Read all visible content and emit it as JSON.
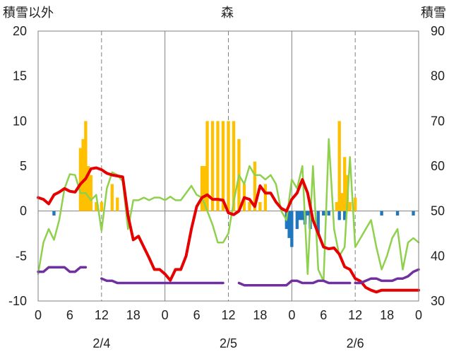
{
  "chart_data": {
    "type": "combo",
    "title": "森",
    "ylabel_left": "積雪以外",
    "ylabel_right": "積雪",
    "ylim_left": [
      -10,
      20
    ],
    "yticks_left": [
      "-10",
      "-5",
      "0",
      "5",
      "10",
      "15",
      "20"
    ],
    "ylim_right": [
      30,
      90
    ],
    "yticks_right": [
      "30",
      "40",
      "50",
      "60",
      "70",
      "80",
      "90"
    ],
    "x_range_hours": [
      0,
      72
    ],
    "x_tick_labels": [
      "0",
      "6",
      "12",
      "18",
      "0",
      "6",
      "12",
      "18",
      "0",
      "6",
      "12",
      "18",
      "0"
    ],
    "date_labels": [
      "2/4",
      "2/5",
      "2/6"
    ],
    "grid": "dashed vertical every 12h, solid at day boundaries",
    "colors": {
      "precip": "#ffc000",
      "snow_change": "#1f77c0",
      "temperature": "#e60000",
      "wind": "#8fd04d",
      "snow_depth": "#7030a0"
    },
    "precip_bars": {
      "hours": [
        8,
        8.5,
        9,
        9.5,
        10,
        11,
        12,
        14,
        15,
        31,
        31.5,
        32,
        33,
        34,
        35,
        36,
        37,
        38,
        39,
        40,
        41,
        42,
        43,
        56.5,
        57,
        57.5,
        58,
        58.5,
        59,
        60
      ],
      "values": [
        7,
        8,
        10,
        5,
        4,
        1,
        1,
        3,
        1.5,
        5,
        5,
        10,
        10,
        10,
        10,
        10,
        10,
        8,
        3,
        1,
        5.5,
        1,
        3,
        1,
        10,
        2,
        6,
        4,
        1,
        1.5
      ]
    },
    "snow_change_bars": {
      "hours": [
        3,
        47,
        47.5,
        48,
        49,
        49.5,
        50,
        50.5,
        51,
        51.5,
        53,
        54,
        55,
        57,
        58,
        65,
        68,
        71
      ],
      "values": [
        -0.5,
        -2,
        -3,
        -4,
        -2,
        -1,
        -1,
        -1.5,
        -0.5,
        -2,
        -2.5,
        -0.5,
        -0.5,
        -1,
        -1,
        -0.5,
        -0.5,
        -0.5
      ]
    },
    "temperature_line": {
      "hours": [
        0,
        1,
        2,
        3,
        4,
        5,
        6,
        7,
        8,
        9,
        10,
        11,
        12,
        13,
        14,
        15,
        16,
        17,
        18,
        19,
        20,
        21,
        22,
        23,
        24,
        25,
        26,
        27,
        28,
        29,
        30,
        31,
        32,
        33,
        34,
        35,
        36,
        37,
        38,
        39,
        40,
        41,
        42,
        43,
        44,
        45,
        46,
        47,
        48,
        49,
        50,
        51,
        52,
        53,
        54,
        55,
        56,
        57,
        58,
        59,
        60,
        61,
        62,
        63,
        64,
        65,
        66,
        67,
        68,
        69,
        70,
        71,
        72
      ],
      "values": [
        1.5,
        1.3,
        0.8,
        1.8,
        2.1,
        2.5,
        2.2,
        2.1,
        3.0,
        3.6,
        4.7,
        4.8,
        4.6,
        4.2,
        4.0,
        3.9,
        3.8,
        -0.5,
        -3.2,
        -2.8,
        -4.0,
        -5.2,
        -6.5,
        -6.5,
        -7.0,
        -7.7,
        -6.5,
        -6.5,
        -5.0,
        -2.0,
        0.5,
        1.5,
        1.8,
        1.3,
        1.3,
        1.2,
        -0.2,
        -0.4,
        0.0,
        1.5,
        1.3,
        0.5,
        2.8,
        2.0,
        2.0,
        1.0,
        0.3,
        0.0,
        1.3,
        2.0,
        3.5,
        2.0,
        -1.0,
        -2.5,
        -4.0,
        -4.2,
        -4.1,
        -4.8,
        -6.2,
        -6.5,
        -7.5,
        -7.8,
        -8.5,
        -8.8,
        -9.0,
        -8.8,
        -8.8,
        -8.8,
        -8.8,
        -8.8,
        -8.8,
        -8.8,
        -8.8
      ]
    },
    "wind_line": {
      "hours": [
        0,
        1,
        2,
        3,
        4,
        5,
        6,
        7,
        8,
        9,
        10,
        11,
        12,
        13,
        14,
        15,
        16,
        17,
        18,
        19,
        20,
        21,
        22,
        23,
        24,
        25,
        26,
        27,
        28,
        29,
        30,
        31,
        32,
        33,
        34,
        35,
        36,
        37,
        38,
        39,
        40,
        41,
        42,
        43,
        44,
        45,
        46,
        47,
        48,
        49,
        50,
        51,
        52,
        53,
        54,
        55,
        56,
        57,
        58,
        59,
        60,
        61,
        62,
        63,
        64,
        65,
        66,
        67,
        68,
        69,
        70,
        71,
        72
      ],
      "values": [
        -7,
        -3.5,
        -2,
        -3.2,
        -1,
        2.5,
        4.1,
        4,
        2,
        2,
        1.2,
        1.8,
        -2.2,
        2.5,
        4.3,
        4,
        3.3,
        -2,
        1.2,
        1.2,
        1.5,
        1.2,
        1.5,
        1.5,
        1.2,
        1.6,
        1.2,
        1.2,
        2,
        2.8,
        1.8,
        1.5,
        0,
        -1.5,
        -3.5,
        -3.5,
        -2.5,
        1,
        4,
        3,
        5,
        4,
        4,
        3.5,
        4,
        3,
        0,
        -1,
        3.5,
        2.5,
        5,
        -7,
        5,
        -6.5,
        -7.8,
        8,
        -2,
        -5,
        -4,
        6,
        -4,
        -3,
        -2,
        -1,
        -4,
        -6.5,
        -5,
        -3,
        -2,
        -6.5,
        -3.5,
        -3,
        -3.5
      ]
    },
    "snow_depth_segments": [
      {
        "hours": [
          0,
          1,
          2,
          3,
          4,
          5,
          6,
          7,
          8,
          9
        ],
        "values": [
          36.5,
          36.5,
          37.5,
          37.5,
          37.5,
          37.5,
          36.5,
          36.5,
          37.5,
          37.5
        ]
      },
      {
        "hours": [
          12,
          13,
          14,
          15,
          16,
          17,
          18,
          19,
          20,
          21,
          22,
          23,
          24,
          25,
          26,
          27,
          28,
          29,
          30,
          31,
          32,
          33,
          34,
          35
        ],
        "values": [
          35,
          34.5,
          34.5,
          34,
          34,
          34,
          34,
          34,
          34,
          34,
          34,
          34,
          34,
          34,
          34,
          34,
          34,
          34,
          34,
          34,
          34,
          34,
          34,
          34
        ]
      },
      {
        "hours": [
          38,
          39,
          40,
          41,
          42,
          43,
          44,
          45,
          46,
          47,
          48,
          49,
          50,
          51,
          52,
          53,
          54,
          55,
          56,
          57,
          58,
          59
        ],
        "values": [
          34,
          33.5,
          33.5,
          33.5,
          33.5,
          33.5,
          33.5,
          33.5,
          33.5,
          33.5,
          34.5,
          34.5,
          34,
          34,
          34,
          34.5,
          34.5,
          34,
          34,
          34,
          34,
          34
        ]
      },
      {
        "hours": [
          60,
          61,
          62,
          63,
          64,
          65,
          66,
          67,
          68,
          69,
          70,
          71,
          72
        ],
        "values": [
          34,
          34,
          34.5,
          35,
          35,
          34.5,
          34.5,
          34.5,
          35,
          35,
          35.5,
          36.5,
          37
        ]
      }
    ]
  }
}
